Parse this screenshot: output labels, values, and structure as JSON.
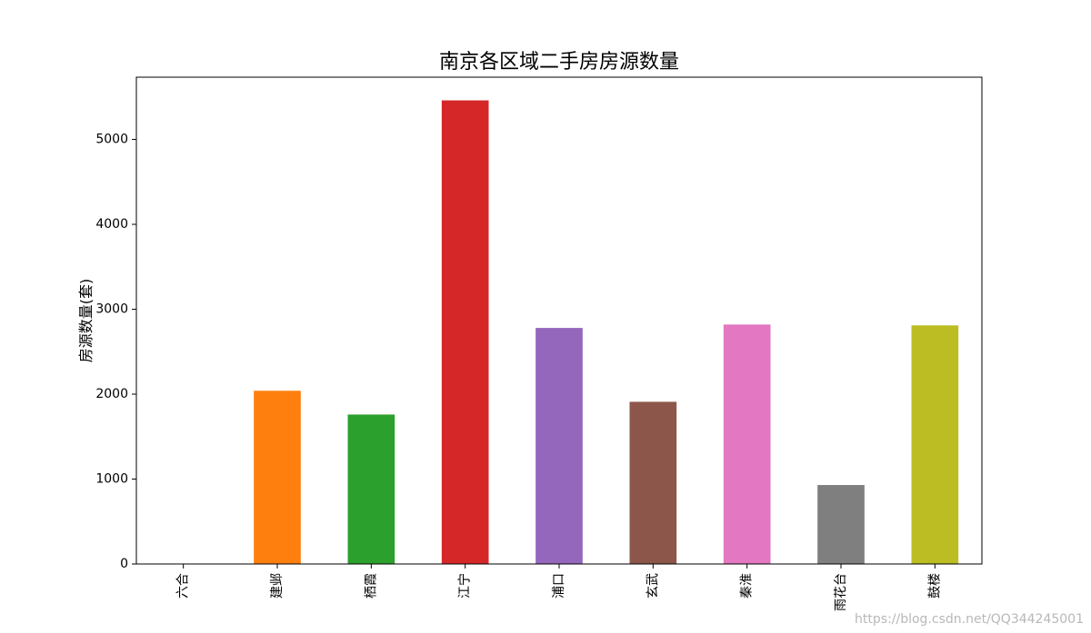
{
  "chart_data": {
    "type": "bar",
    "title": "南京各区域二手房房源数量",
    "xlabel": "",
    "ylabel": "房源数量(套)",
    "categories": [
      "六合",
      "建邺",
      "栖霞",
      "江宁",
      "浦口",
      "玄武",
      "秦淮",
      "雨花台",
      "鼓楼"
    ],
    "values": [
      0,
      2040,
      1760,
      5460,
      2780,
      1910,
      2820,
      930,
      2810
    ],
    "colors": [
      "#1f77b4",
      "#ff7f0e",
      "#2ca02c",
      "#d62728",
      "#9467bd",
      "#8c564b",
      "#e377c2",
      "#7f7f7f",
      "#bcbd22"
    ],
    "yticks": [
      0,
      1000,
      2000,
      3000,
      4000,
      5000
    ],
    "ylim": [
      0,
      5733
    ],
    "grid": false,
    "legend": "none"
  },
  "watermark": "https://blog.csdn.net/QQ344245001"
}
